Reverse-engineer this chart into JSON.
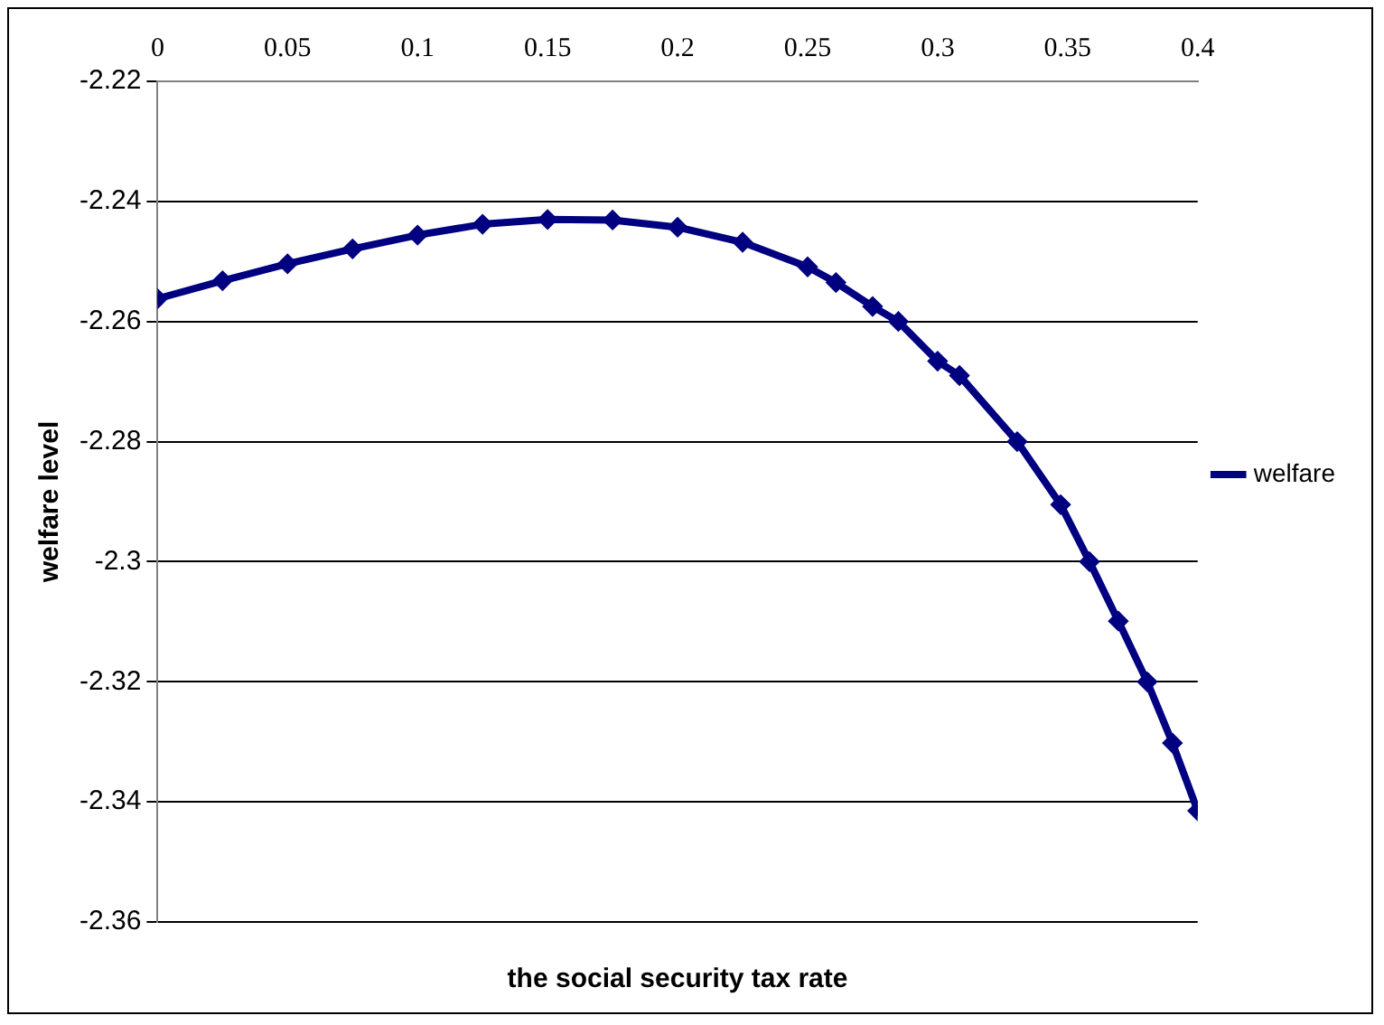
{
  "chart_data": {
    "type": "line",
    "xlabel": "the social security tax rate",
    "ylabel": "welfare level",
    "xlim": [
      0,
      0.4
    ],
    "xticks": [
      0,
      0.05,
      0.1,
      0.15,
      0.2,
      0.25,
      0.3,
      0.35,
      0.4
    ],
    "ylim": [
      -2.36,
      -2.22
    ],
    "yticks": [
      -2.22,
      -2.24,
      -2.26,
      -2.28,
      -2.3,
      -2.32,
      -2.34,
      -2.36
    ],
    "grid": "y",
    "legend": "right",
    "marker": "diamond",
    "line_style": "solid",
    "x": [
      0,
      0.025,
      0.05,
      0.075,
      0.1,
      0.125,
      0.15,
      0.175,
      0.2,
      0.225,
      0.25,
      0.2609,
      0.275,
      0.2849,
      0.3,
      0.3084,
      0.3306,
      0.3473,
      0.3584,
      0.3695,
      0.3806,
      0.3903,
      0.4
    ],
    "series": [
      {
        "name": "welfare",
        "color": "#000080",
        "values": [
          -2.2562,
          -2.2532,
          -2.2504,
          -2.2479,
          -2.2456,
          -2.2438,
          -2.243,
          -2.2431,
          -2.2443,
          -2.2468,
          -2.2509,
          -2.2535,
          -2.2575,
          -2.26,
          -2.2666,
          -2.269,
          -2.28,
          -2.2905,
          -2.3,
          -2.3099,
          -2.32,
          -2.3302,
          -2.3415
        ]
      }
    ]
  }
}
